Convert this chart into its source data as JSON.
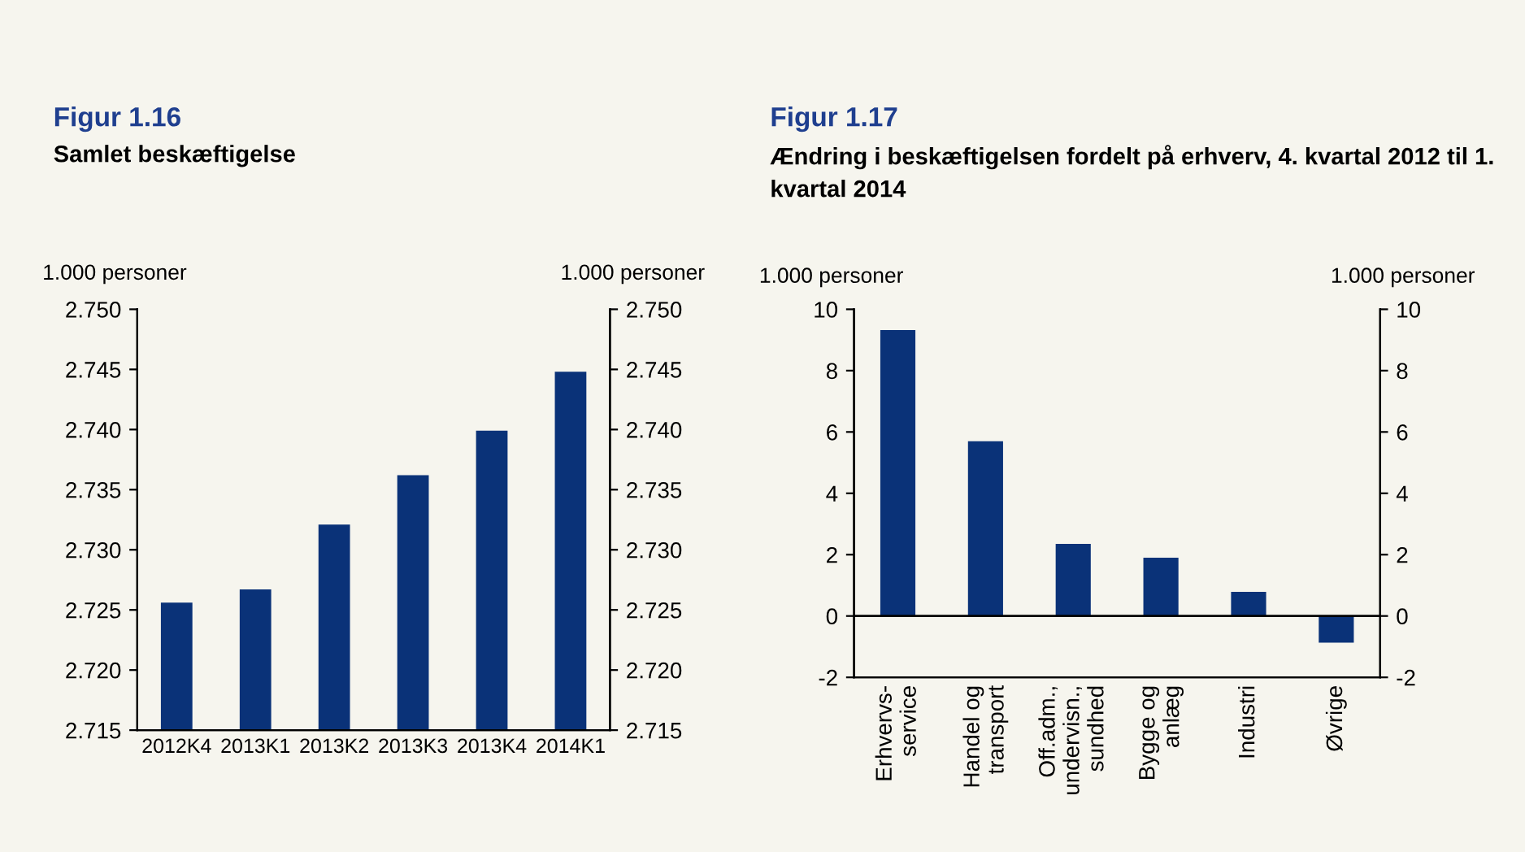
{
  "chart_data": [
    {
      "type": "bar",
      "title": "Figur 1.16",
      "subtitle": "Samlet beskæftigelse",
      "ylabel": "1.000 personer",
      "y2label": "1.000 personer",
      "categories": [
        "2012K4",
        "2013K1",
        "2013K2",
        "2013K3",
        "2013K4",
        "2014K1"
      ],
      "series": [
        {
          "color": "#0a3278",
          "values": [
            2.7256,
            2.7267,
            2.7321,
            2.7362,
            2.7399,
            2.7448
          ]
        }
      ],
      "ylim": [
        2.715,
        2.75
      ],
      "yticks": [
        {
          "value": 2.715,
          "label": "2.715"
        },
        {
          "value": 2.72,
          "label": "2.720"
        },
        {
          "value": 2.725,
          "label": "2.725"
        },
        {
          "value": 2.73,
          "label": "2.730"
        },
        {
          "value": 2.735,
          "label": "2.735"
        },
        {
          "value": 2.74,
          "label": "2.740"
        },
        {
          "value": 2.745,
          "label": "2.745"
        },
        {
          "value": 2.75,
          "label": "2.750"
        }
      ],
      "y2lim": [
        2.715,
        2.75
      ],
      "y2ticks": [
        {
          "value": 2.715,
          "label": "2.715"
        },
        {
          "value": 2.72,
          "label": "2.720"
        },
        {
          "value": 2.725,
          "label": "2.725"
        },
        {
          "value": 2.73,
          "label": "2.730"
        },
        {
          "value": 2.735,
          "label": "2.735"
        },
        {
          "value": 2.74,
          "label": "2.740"
        },
        {
          "value": 2.745,
          "label": "2.745"
        },
        {
          "value": 2.75,
          "label": "2.750"
        }
      ]
    },
    {
      "type": "bar",
      "title": "Figur 1.17",
      "subtitle": "Ændring i beskæftigelsen fordelt på erhverv, 4. kvartal 2012 til 1. kvartal 2014",
      "ylabel": "1.000 personer",
      "y2label": "1.000 personer",
      "categories": [
        "Erhvervs-\nservice",
        "Handel og\ntransport",
        "Off.adm.,\nundervisn.,\nsundhed",
        "Bygge og\nanlæg",
        "Industri",
        "Øvrige"
      ],
      "series": [
        {
          "color": "#0a3278",
          "values": [
            9.32,
            5.7,
            2.35,
            1.9,
            0.79,
            -0.87
          ]
        }
      ],
      "ylim": [
        -2,
        10
      ],
      "yticks": [
        -2,
        0,
        2,
        4,
        6,
        8,
        10
      ],
      "y2lim": [
        -2,
        10
      ],
      "y2ticks": [
        -2,
        0,
        2,
        4,
        6,
        8,
        10
      ],
      "ref_lines": [
        {
          "axis": "y",
          "value": 0,
          "color": "#000000"
        }
      ]
    }
  ]
}
